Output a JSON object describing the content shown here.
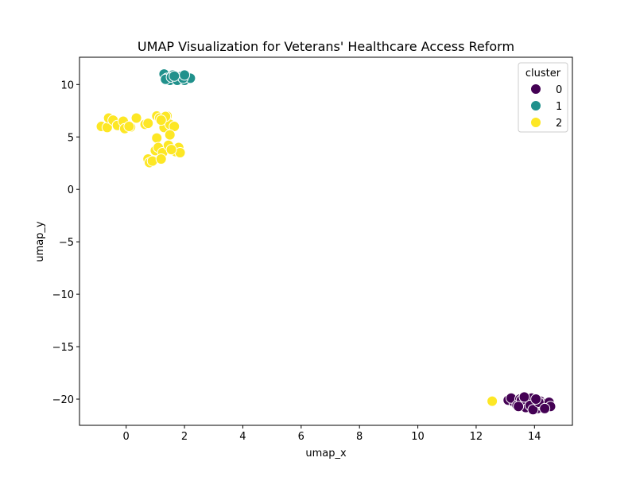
{
  "chart_data": {
    "type": "scatter",
    "title": "UMAP Visualization for Veterans' Healthcare Access Reform",
    "xlabel": "umap_x",
    "ylabel": "umap_y",
    "xlim": [
      -1.6,
      15.3
    ],
    "ylim": [
      -22.5,
      12.6
    ],
    "xticks": [
      0,
      2,
      4,
      6,
      8,
      10,
      12,
      14
    ],
    "yticks": [
      -20,
      -15,
      -10,
      -5,
      0,
      5,
      10
    ],
    "legend": {
      "title": "cluster",
      "placement": "top-right"
    },
    "grid": false,
    "series": [
      {
        "name": "0",
        "color": "#440154",
        "points": [
          [
            13.1,
            -20.1
          ],
          [
            13.3,
            -20.3
          ],
          [
            13.2,
            -19.9
          ],
          [
            13.5,
            -20.0
          ],
          [
            13.4,
            -20.6
          ],
          [
            13.6,
            -20.4
          ],
          [
            13.7,
            -20.8
          ],
          [
            13.8,
            -20.2
          ],
          [
            13.9,
            -19.9
          ],
          [
            14.0,
            -20.5
          ],
          [
            14.1,
            -20.9
          ],
          [
            14.2,
            -20.2
          ],
          [
            14.3,
            -20.7
          ],
          [
            14.4,
            -20.4
          ],
          [
            14.5,
            -20.3
          ],
          [
            14.55,
            -20.7
          ],
          [
            13.55,
            -20.1
          ],
          [
            13.85,
            -20.6
          ],
          [
            13.95,
            -21.0
          ],
          [
            14.15,
            -20.3
          ],
          [
            13.45,
            -20.7
          ],
          [
            14.35,
            -20.9
          ],
          [
            13.65,
            -19.8
          ],
          [
            14.05,
            -20.0
          ]
        ]
      },
      {
        "name": "1",
        "color": "#21918c",
        "points": [
          [
            1.3,
            11.0
          ],
          [
            1.4,
            10.6
          ],
          [
            1.5,
            10.4
          ],
          [
            1.6,
            10.9
          ],
          [
            1.7,
            10.6
          ],
          [
            1.8,
            10.5
          ],
          [
            1.9,
            10.8
          ],
          [
            2.0,
            10.4
          ],
          [
            2.1,
            10.7
          ],
          [
            2.2,
            10.6
          ],
          [
            1.35,
            10.5
          ],
          [
            1.55,
            10.7
          ],
          [
            1.75,
            10.4
          ],
          [
            1.95,
            10.6
          ],
          [
            2.0,
            10.9
          ],
          [
            1.65,
            10.8
          ]
        ]
      },
      {
        "name": "2",
        "color": "#fde725",
        "points": [
          [
            -0.85,
            6.0
          ],
          [
            -0.65,
            5.9
          ],
          [
            -0.6,
            6.8
          ],
          [
            -0.45,
            6.6
          ],
          [
            -0.3,
            6.1
          ],
          [
            -0.1,
            6.5
          ],
          [
            -0.05,
            5.8
          ],
          [
            0.15,
            5.95
          ],
          [
            0.1,
            6.0
          ],
          [
            0.35,
            6.8
          ],
          [
            0.65,
            6.2
          ],
          [
            0.75,
            6.3
          ],
          [
            1.05,
            7.0
          ],
          [
            1.15,
            6.8
          ],
          [
            1.3,
            5.9
          ],
          [
            1.4,
            7.0
          ],
          [
            1.5,
            6.2
          ],
          [
            1.65,
            6.0
          ],
          [
            1.35,
            6.95
          ],
          [
            1.2,
            6.6
          ],
          [
            1.05,
            4.9
          ],
          [
            1.5,
            5.2
          ],
          [
            1.0,
            3.7
          ],
          [
            1.1,
            4.0
          ],
          [
            1.25,
            3.5
          ],
          [
            1.45,
            4.2
          ],
          [
            1.7,
            3.6
          ],
          [
            1.8,
            4.0
          ],
          [
            1.85,
            3.5
          ],
          [
            1.55,
            3.8
          ],
          [
            0.75,
            2.9
          ],
          [
            0.8,
            2.55
          ],
          [
            0.9,
            2.7
          ],
          [
            1.2,
            2.9
          ],
          [
            12.55,
            -20.2
          ]
        ]
      }
    ]
  }
}
